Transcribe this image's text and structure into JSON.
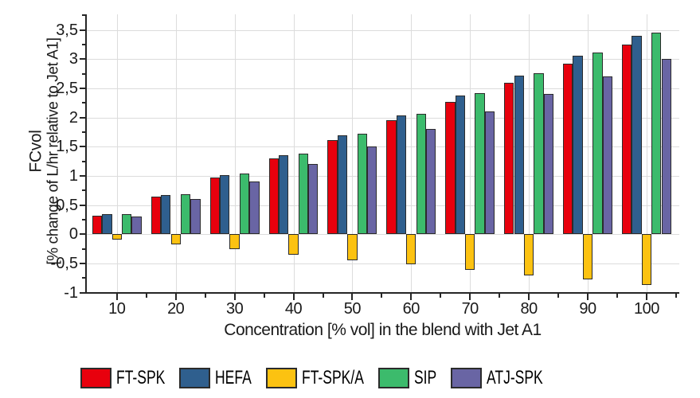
{
  "chart_data": {
    "type": "bar",
    "title": "",
    "categories": [
      "10",
      "20",
      "30",
      "40",
      "50",
      "60",
      "70",
      "80",
      "90",
      "100"
    ],
    "series": [
      {
        "name": "FT-SPK",
        "color": "#e8000d",
        "values": [
          0.32,
          0.65,
          0.97,
          1.3,
          1.62,
          1.95,
          2.27,
          2.6,
          2.92,
          3.25
        ]
      },
      {
        "name": "HEFA",
        "color": "#2f5f8e",
        "values": [
          0.34,
          0.68,
          1.02,
          1.36,
          1.7,
          2.04,
          2.38,
          2.72,
          3.06,
          3.4
        ]
      },
      {
        "name": "FT-SPK/A",
        "color": "#fcc211",
        "values": [
          -0.09,
          -0.17,
          -0.26,
          -0.35,
          -0.44,
          -0.52,
          -0.61,
          -0.7,
          -0.78,
          -0.87
        ]
      },
      {
        "name": "SIP",
        "color": "#3cbb6c",
        "values": [
          0.35,
          0.69,
          1.04,
          1.38,
          1.73,
          2.07,
          2.42,
          2.76,
          3.11,
          3.45
        ]
      },
      {
        "name": "ATJ-SPK",
        "color": "#6965a4",
        "values": [
          0.3,
          0.6,
          0.9,
          1.2,
          1.5,
          1.8,
          2.1,
          2.4,
          2.7,
          3.0
        ]
      }
    ],
    "xlabel": "Concentration [% vol] in the blend with Jet A1",
    "ylabel_line1": "FCvol",
    "ylabel_line2": "[% change of L/hr relative to Jet A1]",
    "ylim": [
      -1,
      3.77
    ],
    "yticks": [
      {
        "value": 3.5,
        "label": "3,5"
      },
      {
        "value": 3.0,
        "label": "3"
      },
      {
        "value": 2.5,
        "label": "2,5"
      },
      {
        "value": 2.0,
        "label": "2"
      },
      {
        "value": 1.5,
        "label": "1,5"
      },
      {
        "value": 1.0,
        "label": "1"
      },
      {
        "value": 0.5,
        "label": "0,5"
      },
      {
        "value": 0.0,
        "label": "0"
      },
      {
        "value": -0.5,
        "label": "-0,5"
      },
      {
        "value": -1.0,
        "label": "-1"
      }
    ],
    "decimal_separator": ",",
    "grid": true,
    "legend_position": "bottom",
    "gridline_color": "#dcdcdc",
    "axis_color": "#262626",
    "bar_outline_color": "#2b2b2b"
  }
}
